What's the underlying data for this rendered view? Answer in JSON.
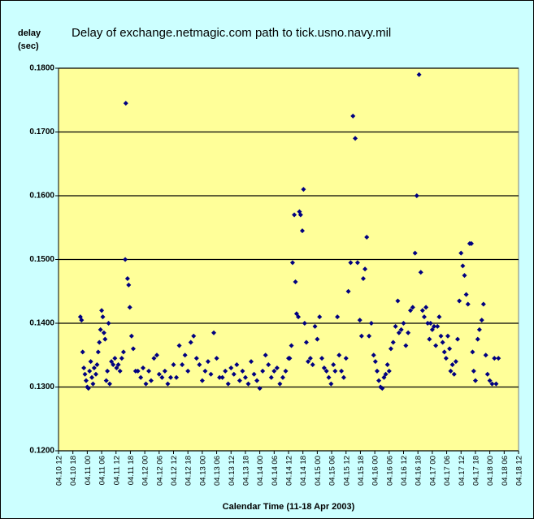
{
  "chart_data": {
    "type": "scatter",
    "title": "Delay of exchange.netmagic.com path to tick.usno.navy.mil",
    "y_label": [
      "delay",
      "(sec)"
    ],
    "x_label": "Calendar Time (11-18 Apr 2003)",
    "color": "#000080",
    "grid": true,
    "xlim": [
      10.5,
      18.5
    ],
    "xticks": [
      {
        "value": 10.5,
        "label": "04.10 12"
      },
      {
        "value": 10.75,
        "label": "04.10 18"
      },
      {
        "value": 11,
        "label": "04.11 00"
      },
      {
        "value": 11.25,
        "label": "04.11 06"
      },
      {
        "value": 11.5,
        "label": "04.11 12"
      },
      {
        "value": 11.75,
        "label": "04.11 18"
      },
      {
        "value": 12,
        "label": "04.12 00"
      },
      {
        "value": 12.25,
        "label": "04.12 06"
      },
      {
        "value": 12.5,
        "label": "04.12 12"
      },
      {
        "value": 12.75,
        "label": "04.12 18"
      },
      {
        "value": 13,
        "label": "04.13 00"
      },
      {
        "value": 13.25,
        "label": "04.13 06"
      },
      {
        "value": 13.5,
        "label": "04.13 12"
      },
      {
        "value": 13.75,
        "label": "04.13 18"
      },
      {
        "value": 14,
        "label": "04.14 00"
      },
      {
        "value": 14.25,
        "label": "04.14 06"
      },
      {
        "value": 14.5,
        "label": "04.14 12"
      },
      {
        "value": 14.75,
        "label": "04.14 18"
      },
      {
        "value": 15,
        "label": "04.15 00"
      },
      {
        "value": 15.25,
        "label": "04.15 06"
      },
      {
        "value": 15.5,
        "label": "04.15 12"
      },
      {
        "value": 15.75,
        "label": "04.15 18"
      },
      {
        "value": 16,
        "label": "04.16 00"
      },
      {
        "value": 16.25,
        "label": "04.16 06"
      },
      {
        "value": 16.5,
        "label": "04.16 12"
      },
      {
        "value": 16.75,
        "label": "04.16 18"
      },
      {
        "value": 17,
        "label": "04.17 00"
      },
      {
        "value": 17.25,
        "label": "04.17 06"
      },
      {
        "value": 17.5,
        "label": "04.17 12"
      },
      {
        "value": 17.75,
        "label": "04.17 18"
      },
      {
        "value": 18,
        "label": "04.18 00"
      },
      {
        "value": 18.25,
        "label": "04.18 06"
      },
      {
        "value": 18.5,
        "label": "04.18 12"
      }
    ],
    "ylim": [
      0.12,
      0.18
    ],
    "yticks": [
      {
        "value": 0.12,
        "label": "0.1200"
      },
      {
        "value": 0.13,
        "label": "0.1300"
      },
      {
        "value": 0.14,
        "label": "0.1400"
      },
      {
        "value": 0.15,
        "label": "0.1500"
      },
      {
        "value": 0.16,
        "label": "0.1600"
      },
      {
        "value": 0.17,
        "label": "0.1700"
      },
      {
        "value": 0.18,
        "label": "0.1800"
      }
    ],
    "x": [
      10.88,
      10.9,
      10.92,
      10.94,
      10.96,
      10.98,
      11.0,
      11.02,
      11.04,
      11.06,
      11.08,
      11.1,
      11.12,
      11.15,
      11.17,
      11.19,
      11.21,
      11.23,
      11.25,
      11.27,
      11.29,
      11.31,
      11.33,
      11.35,
      11.37,
      11.39,
      11.42,
      11.45,
      11.48,
      11.51,
      11.54,
      11.57,
      11.6,
      11.63,
      11.67,
      11.66,
      11.7,
      11.72,
      11.74,
      11.77,
      11.8,
      11.84,
      11.88,
      11.93,
      11.97,
      12.02,
      12.07,
      12.11,
      12.16,
      12.21,
      12.25,
      12.3,
      12.35,
      12.4,
      12.45,
      12.5,
      12.55,
      12.6,
      12.65,
      12.7,
      12.75,
      12.8,
      12.85,
      12.9,
      12.95,
      13.0,
      13.05,
      13.1,
      13.15,
      13.2,
      13.25,
      13.3,
      13.35,
      13.4,
      13.45,
      13.5,
      13.55,
      13.6,
      13.65,
      13.7,
      13.75,
      13.8,
      13.85,
      13.9,
      13.95,
      14.0,
      14.05,
      14.1,
      14.15,
      14.2,
      14.25,
      14.3,
      14.35,
      14.4,
      14.45,
      14.5,
      14.52,
      14.55,
      14.57,
      14.6,
      14.62,
      14.64,
      14.67,
      14.69,
      14.71,
      14.74,
      14.76,
      14.78,
      14.81,
      14.84,
      14.88,
      14.92,
      14.96,
      15.0,
      15.04,
      15.08,
      15.12,
      15.16,
      15.2,
      15.24,
      15.28,
      15.31,
      15.35,
      15.38,
      15.42,
      15.46,
      15.5,
      15.54,
      15.58,
      15.62,
      15.66,
      15.7,
      15.74,
      15.77,
      15.8,
      15.83,
      15.86,
      15.9,
      15.94,
      15.98,
      16.01,
      16.04,
      16.07,
      16.1,
      16.13,
      16.16,
      16.19,
      16.22,
      16.25,
      16.28,
      16.32,
      16.36,
      16.4,
      16.42,
      16.46,
      16.5,
      16.54,
      16.58,
      16.62,
      16.66,
      16.7,
      16.73,
      16.77,
      16.8,
      16.83,
      16.86,
      16.89,
      16.92,
      16.95,
      16.97,
      17.0,
      17.03,
      17.06,
      17.09,
      17.12,
      17.15,
      17.18,
      17.21,
      17.24,
      17.27,
      17.3,
      17.32,
      17.35,
      17.38,
      17.41,
      17.44,
      17.47,
      17.5,
      17.53,
      17.56,
      17.59,
      17.62,
      17.65,
      17.68,
      17.7,
      17.72,
      17.75,
      17.79,
      17.82,
      17.86,
      17.89,
      17.93,
      17.96,
      18.0,
      18.04,
      18.08,
      18.11,
      18.15
    ],
    "values": [
      0.141,
      0.1405,
      0.1355,
      0.133,
      0.132,
      0.131,
      0.13,
      0.1298,
      0.1325,
      0.134,
      0.1315,
      0.1305,
      0.133,
      0.132,
      0.1335,
      0.1355,
      0.137,
      0.139,
      0.142,
      0.141,
      0.1385,
      0.1375,
      0.131,
      0.1325,
      0.14,
      0.1305,
      0.134,
      0.1335,
      0.1345,
      0.133,
      0.1335,
      0.1325,
      0.1345,
      0.1355,
      0.1745,
      0.15,
      0.147,
      0.146,
      0.1425,
      0.138,
      0.136,
      0.1325,
      0.1325,
      0.1315,
      0.133,
      0.1305,
      0.1325,
      0.131,
      0.1345,
      0.135,
      0.132,
      0.1315,
      0.1325,
      0.1305,
      0.1315,
      0.1335,
      0.1315,
      0.1365,
      0.1335,
      0.135,
      0.1325,
      0.137,
      0.138,
      0.1345,
      0.1335,
      0.131,
      0.1325,
      0.134,
      0.132,
      0.1385,
      0.1345,
      0.1315,
      0.1315,
      0.1325,
      0.1305,
      0.133,
      0.132,
      0.1335,
      0.131,
      0.1325,
      0.1315,
      0.1305,
      0.134,
      0.132,
      0.131,
      0.1298,
      0.1325,
      0.135,
      0.1335,
      0.1315,
      0.1325,
      0.133,
      0.1305,
      0.1315,
      0.1325,
      0.1345,
      0.1345,
      0.1365,
      0.1495,
      0.157,
      0.1465,
      0.1415,
      0.141,
      0.1575,
      0.157,
      0.1545,
      0.161,
      0.14,
      0.137,
      0.134,
      0.1345,
      0.1335,
      0.1395,
      0.1375,
      0.141,
      0.1345,
      0.133,
      0.1325,
      0.1315,
      0.1305,
      0.1335,
      0.1325,
      0.141,
      0.135,
      0.1325,
      0.1315,
      0.1345,
      0.145,
      0.1495,
      0.1725,
      0.169,
      0.1495,
      0.1405,
      0.138,
      0.147,
      0.1485,
      0.1535,
      0.138,
      0.14,
      0.135,
      0.134,
      0.1325,
      0.131,
      0.13,
      0.1298,
      0.1315,
      0.132,
      0.1335,
      0.1325,
      0.136,
      0.137,
      0.1395,
      0.1435,
      0.1385,
      0.139,
      0.14,
      0.1365,
      0.1385,
      0.142,
      0.1425,
      0.151,
      0.16,
      0.179,
      0.148,
      0.142,
      0.141,
      0.1425,
      0.14,
      0.1375,
      0.14,
      0.139,
      0.1395,
      0.1365,
      0.1395,
      0.141,
      0.138,
      0.137,
      0.1355,
      0.1345,
      0.138,
      0.136,
      0.1325,
      0.1335,
      0.132,
      0.134,
      0.1375,
      0.1435,
      0.151,
      0.149,
      0.1475,
      0.1445,
      0.143,
      0.1525,
      0.1525,
      0.1355,
      0.1325,
      0.131,
      0.1375,
      0.139,
      0.1405,
      0.143,
      0.135,
      0.132,
      0.131,
      0.1305,
      0.1345,
      0.1305,
      0.1345
    ]
  }
}
